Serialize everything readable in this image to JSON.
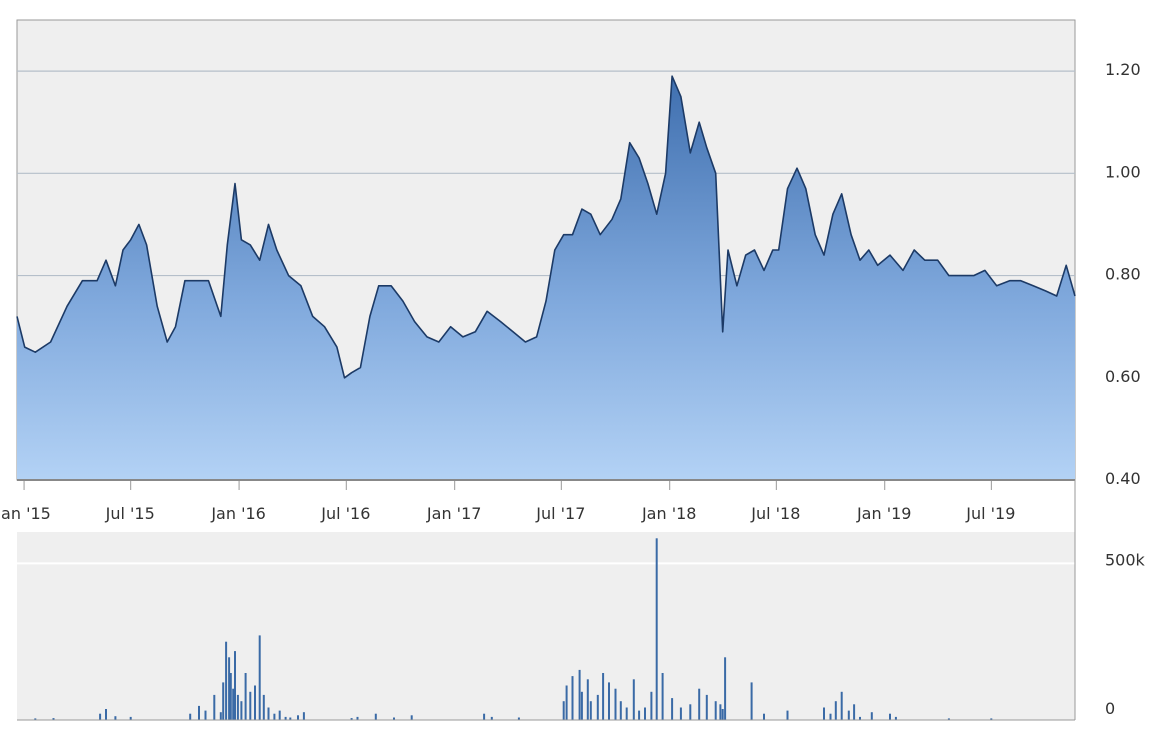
{
  "chart_data": [
    {
      "type": "area",
      "title": "",
      "xlabel": "",
      "ylabel": "",
      "ylim": [
        0.4,
        1.3
      ],
      "yticks": [
        "1.20",
        "1.00",
        "0.80",
        "0.60",
        "0.40"
      ],
      "ytick_values": [
        1.2,
        1.0,
        0.8,
        0.6,
        0.4
      ],
      "xticks": [
        "Jan '15",
        "Jul '15",
        "Jan '16",
        "Jul '16",
        "Jan '17",
        "Jul '17",
        "Jan '18",
        "Jul '18",
        "Jan '19",
        "Jul '19"
      ],
      "xtick_values": [
        "2015-01-01",
        "2015-07-01",
        "2016-01-01",
        "2016-07-01",
        "2017-01-01",
        "2017-07-01",
        "2018-01-01",
        "2018-07-01",
        "2019-01-01",
        "2019-07-01"
      ],
      "grid": true,
      "x": [
        "2014-12-20",
        "2015-01-02",
        "2015-01-20",
        "2015-02-15",
        "2015-03-15",
        "2015-04-10",
        "2015-05-05",
        "2015-05-20",
        "2015-06-05",
        "2015-06-18",
        "2015-07-01",
        "2015-07-15",
        "2015-07-28",
        "2015-08-15",
        "2015-09-01",
        "2015-09-15",
        "2015-10-01",
        "2015-10-20",
        "2015-11-10",
        "2015-12-01",
        "2015-12-12",
        "2015-12-25",
        "2016-01-05",
        "2016-01-20",
        "2016-02-05",
        "2016-02-20",
        "2016-03-05",
        "2016-03-25",
        "2016-04-15",
        "2016-05-05",
        "2016-05-25",
        "2016-06-15",
        "2016-06-28",
        "2016-07-10",
        "2016-07-25",
        "2016-08-10",
        "2016-08-25",
        "2016-09-15",
        "2016-10-05",
        "2016-10-25",
        "2016-11-15",
        "2016-12-05",
        "2016-12-25",
        "2017-01-15",
        "2017-02-05",
        "2017-02-25",
        "2017-03-20",
        "2017-04-10",
        "2017-05-01",
        "2017-05-20",
        "2017-06-05",
        "2017-06-20",
        "2017-07-05",
        "2017-07-20",
        "2017-08-05",
        "2017-08-20",
        "2017-09-05",
        "2017-09-25",
        "2017-10-10",
        "2017-10-25",
        "2017-11-10",
        "2017-11-25",
        "2017-12-10",
        "2017-12-25",
        "2018-01-05",
        "2018-01-20",
        "2018-02-05",
        "2018-02-20",
        "2018-03-05",
        "2018-03-20",
        "2018-04-01",
        "2018-04-10",
        "2018-04-25",
        "2018-05-10",
        "2018-05-25",
        "2018-06-10",
        "2018-06-25",
        "2018-07-05",
        "2018-07-20",
        "2018-08-05",
        "2018-08-20",
        "2018-09-05",
        "2018-09-20",
        "2018-10-05",
        "2018-10-20",
        "2018-11-05",
        "2018-11-20",
        "2018-12-05",
        "2018-12-20",
        "2019-01-10",
        "2019-02-01",
        "2019-02-20",
        "2019-03-10",
        "2019-04-01",
        "2019-04-20",
        "2019-05-10",
        "2019-06-01",
        "2019-06-20",
        "2019-07-10",
        "2019-08-01",
        "2019-08-20",
        "2019-09-10",
        "2019-10-01",
        "2019-10-20",
        "2019-11-05",
        "2019-11-20"
      ],
      "values": [
        0.72,
        0.66,
        0.65,
        0.67,
        0.74,
        0.79,
        0.79,
        0.83,
        0.78,
        0.85,
        0.87,
        0.9,
        0.86,
        0.74,
        0.67,
        0.7,
        0.79,
        0.79,
        0.79,
        0.72,
        0.86,
        0.98,
        0.87,
        0.86,
        0.83,
        0.9,
        0.85,
        0.8,
        0.78,
        0.72,
        0.7,
        0.66,
        0.6,
        0.61,
        0.62,
        0.72,
        0.78,
        0.78,
        0.75,
        0.71,
        0.68,
        0.67,
        0.7,
        0.68,
        0.69,
        0.73,
        0.71,
        0.69,
        0.67,
        0.68,
        0.75,
        0.85,
        0.88,
        0.88,
        0.93,
        0.92,
        0.88,
        0.91,
        0.95,
        1.06,
        1.03,
        0.98,
        0.92,
        1.0,
        1.19,
        1.15,
        1.04,
        1.1,
        1.05,
        1.0,
        0.69,
        0.85,
        0.78,
        0.84,
        0.85,
        0.81,
        0.85,
        0.85,
        0.97,
        1.01,
        0.97,
        0.88,
        0.84,
        0.92,
        0.96,
        0.88,
        0.83,
        0.85,
        0.82,
        0.84,
        0.81,
        0.85,
        0.83,
        0.83,
        0.8,
        0.8,
        0.8,
        0.81,
        0.78,
        0.79,
        0.79,
        0.78,
        0.77,
        0.76,
        0.82,
        0.76
      ]
    },
    {
      "type": "bar",
      "title": "",
      "xlabel": "",
      "ylabel": "",
      "ylim": [
        0,
        600000
      ],
      "yticks": [
        "500k",
        "0"
      ],
      "ytick_values": [
        500000,
        0
      ],
      "x": [
        "2015-01-20",
        "2015-02-20",
        "2015-05-10",
        "2015-05-20",
        "2015-06-05",
        "2015-07-01",
        "2015-10-10",
        "2015-10-25",
        "2015-11-05",
        "2015-11-20",
        "2015-12-01",
        "2015-12-05",
        "2015-12-10",
        "2015-12-15",
        "2015-12-18",
        "2015-12-22",
        "2015-12-25",
        "2015-12-30",
        "2016-01-05",
        "2016-01-12",
        "2016-01-20",
        "2016-01-28",
        "2016-02-05",
        "2016-02-12",
        "2016-02-20",
        "2016-03-01",
        "2016-03-10",
        "2016-03-20",
        "2016-03-28",
        "2016-04-10",
        "2016-04-20",
        "2016-07-10",
        "2016-07-20",
        "2016-08-20",
        "2016-09-20",
        "2016-10-20",
        "2017-02-20",
        "2017-03-05",
        "2017-04-20",
        "2017-07-05",
        "2017-07-10",
        "2017-07-20",
        "2017-08-01",
        "2017-08-05",
        "2017-08-15",
        "2017-08-20",
        "2017-09-01",
        "2017-09-10",
        "2017-09-20",
        "2017-10-01",
        "2017-10-10",
        "2017-10-20",
        "2017-11-01",
        "2017-11-10",
        "2017-11-20",
        "2017-12-01",
        "2017-12-10",
        "2017-12-20",
        "2018-01-05",
        "2018-01-20",
        "2018-02-05",
        "2018-02-20",
        "2018-03-05",
        "2018-03-20",
        "2018-03-28",
        "2018-04-01",
        "2018-04-05",
        "2018-05-20",
        "2018-06-10",
        "2018-07-20",
        "2018-09-20",
        "2018-10-01",
        "2018-10-10",
        "2018-10-20",
        "2018-11-01",
        "2018-11-10",
        "2018-11-20",
        "2018-12-10",
        "2019-01-10",
        "2019-01-20",
        "2019-04-20",
        "2019-07-01"
      ],
      "values": [
        5000,
        6000,
        20000,
        35000,
        12000,
        10000,
        20000,
        45000,
        30000,
        80000,
        25000,
        120000,
        250000,
        200000,
        150000,
        100000,
        220000,
        80000,
        60000,
        150000,
        90000,
        110000,
        270000,
        80000,
        40000,
        20000,
        30000,
        10000,
        8000,
        15000,
        25000,
        6000,
        10000,
        20000,
        8000,
        15000,
        20000,
        10000,
        8000,
        60000,
        110000,
        140000,
        160000,
        90000,
        130000,
        60000,
        80000,
        150000,
        120000,
        100000,
        60000,
        40000,
        130000,
        30000,
        40000,
        90000,
        580000,
        150000,
        70000,
        40000,
        50000,
        100000,
        80000,
        60000,
        50000,
        35000,
        200000,
        120000,
        20000,
        30000,
        40000,
        20000,
        60000,
        90000,
        30000,
        50000,
        10000,
        25000,
        20000,
        10000,
        5000,
        5000
      ]
    }
  ]
}
